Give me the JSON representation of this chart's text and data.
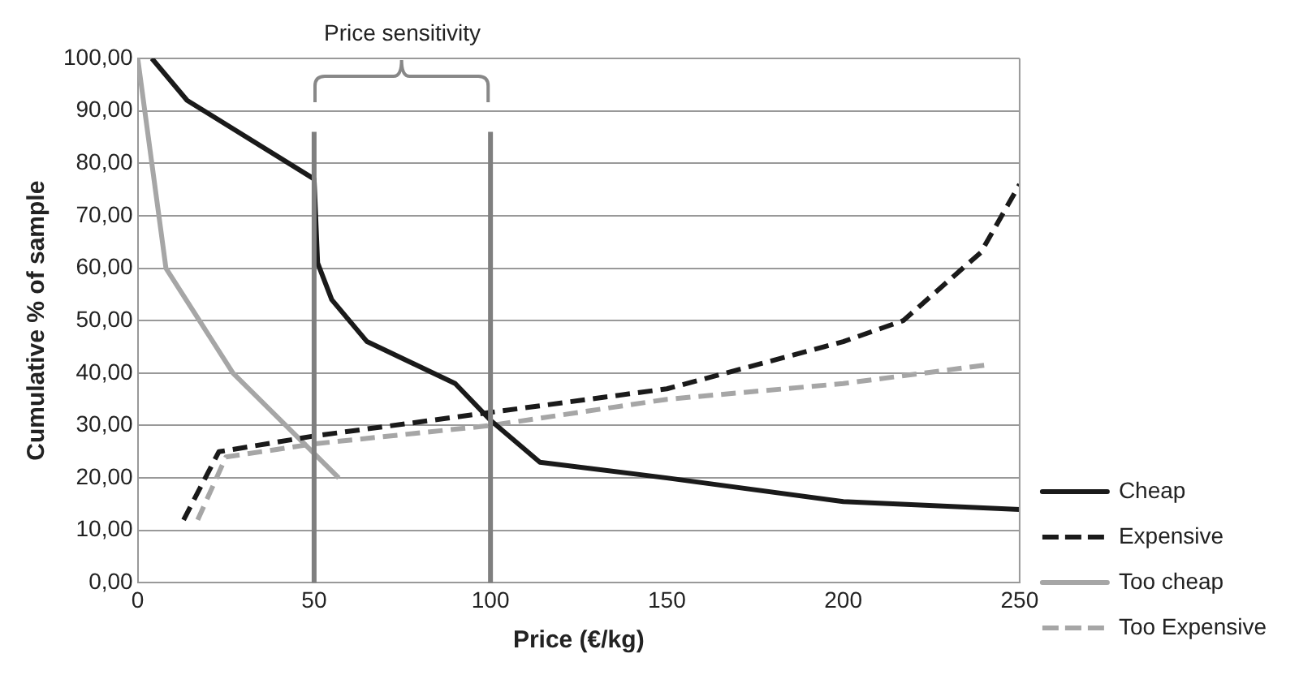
{
  "chart_data": {
    "type": "line",
    "xlabel": "Price (€/kg)",
    "ylabel": "Cumulative % of sample",
    "xlim": [
      0,
      250
    ],
    "xticks": [
      0,
      50,
      100,
      150,
      200,
      250
    ],
    "ylim": [
      0,
      100
    ],
    "yticks": [
      {
        "value": 0,
        "label": "0,00"
      },
      {
        "value": 10,
        "label": "10,00"
      },
      {
        "value": 20,
        "label": "20,00"
      },
      {
        "value": 30,
        "label": "30,00"
      },
      {
        "value": 40,
        "label": "40,00"
      },
      {
        "value": 50,
        "label": "50,00"
      },
      {
        "value": 60,
        "label": "60,00"
      },
      {
        "value": 70,
        "label": "70,00"
      },
      {
        "value": 80,
        "label": "80,00"
      },
      {
        "value": 90,
        "label": "90,00"
      },
      {
        "value": 100,
        "label": "100,00"
      }
    ],
    "grid": "y",
    "legend": "right",
    "marker": "none",
    "series": [
      {
        "name": "Cheap",
        "color": "#1a1a1a",
        "line_style": "solid",
        "x": [
          4,
          14,
          50,
          51,
          55,
          65,
          90,
          100,
          114,
          150,
          200,
          250
        ],
        "values": [
          100,
          92,
          77,
          61,
          54,
          46,
          38,
          31,
          23,
          20,
          15.5,
          14
        ]
      },
      {
        "name": "Expensive",
        "color": "#1a1a1a",
        "line_style": "dashed",
        "x": [
          13,
          23,
          50,
          100,
          150,
          200,
          217,
          239,
          250
        ],
        "values": [
          12,
          25,
          28,
          32.5,
          37,
          46,
          50,
          63,
          76
        ]
      },
      {
        "name": "Too cheap",
        "color": "#a6a6a6",
        "line_style": "solid",
        "x": [
          0,
          8,
          27,
          57
        ],
        "values": [
          100,
          60,
          40,
          20
        ]
      },
      {
        "name": "Too Expensive",
        "color": "#a6a6a6",
        "line_style": "dashed",
        "x": [
          17,
          25,
          50,
          100,
          150,
          200,
          240
        ],
        "values": [
          12,
          24,
          26.5,
          30,
          35,
          38,
          41.5
        ]
      }
    ],
    "ref_lines": [
      {
        "axis": "x",
        "value": 50,
        "color": "#7f7f7f"
      },
      {
        "axis": "x",
        "value": 100,
        "color": "#7f7f7f"
      }
    ],
    "annotations": [
      "Price sensitivity"
    ]
  }
}
